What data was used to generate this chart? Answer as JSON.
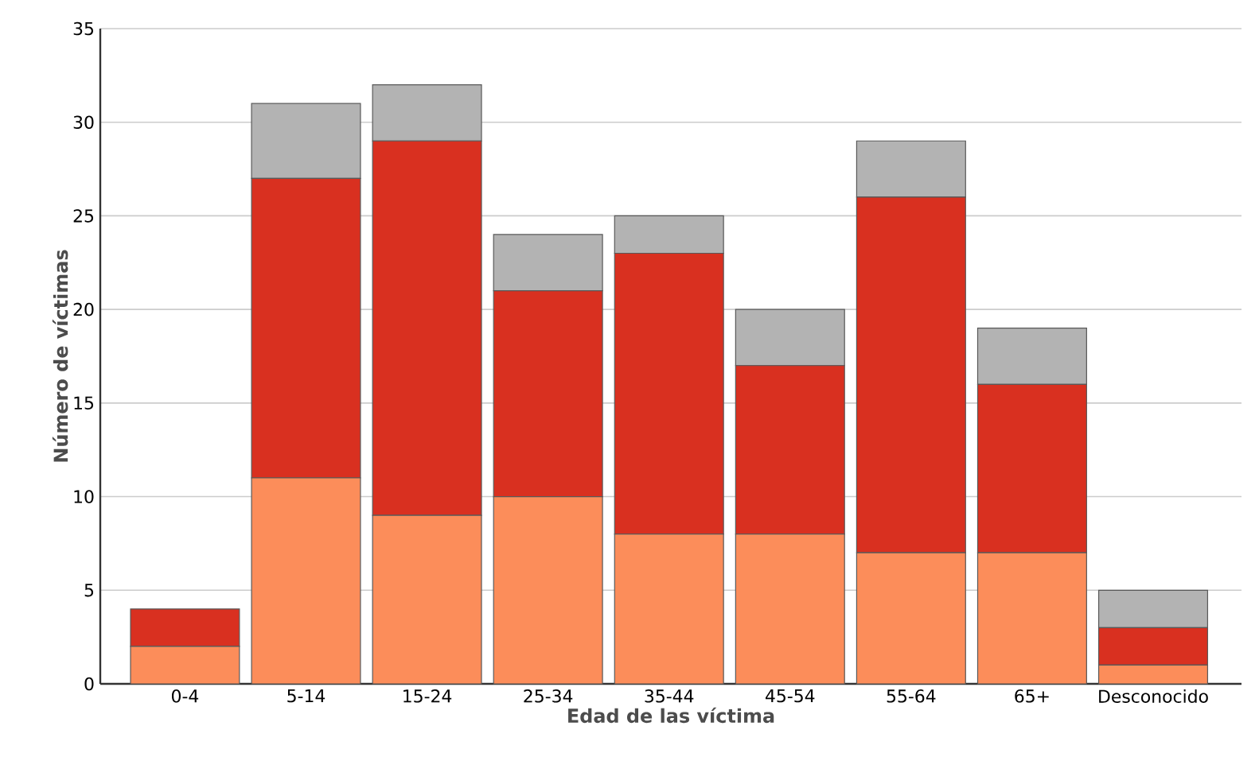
{
  "chart_data": {
    "type": "bar",
    "stacked": true,
    "xlabel": "Edad de las víctima",
    "ylabel": "Número de víctimas",
    "categories": [
      "0-4",
      "5-14",
      "15-24",
      "25-34",
      "35-44",
      "45-54",
      "55-64",
      "65+",
      "Desconocido"
    ],
    "series": [
      {
        "color": "#fc8d5a",
        "values": [
          2,
          11,
          9,
          10,
          8,
          8,
          7,
          7,
          1
        ]
      },
      {
        "color": "#d93020",
        "values": [
          2,
          16,
          20,
          11,
          15,
          9,
          19,
          9,
          2
        ]
      },
      {
        "color": "#b3b3b3",
        "values": [
          0,
          4,
          3,
          3,
          2,
          3,
          3,
          3,
          2
        ]
      }
    ],
    "ylim": [
      0,
      35
    ],
    "yticks": [
      0,
      5,
      10,
      15,
      20,
      25,
      30,
      35
    ],
    "grid": "y"
  }
}
